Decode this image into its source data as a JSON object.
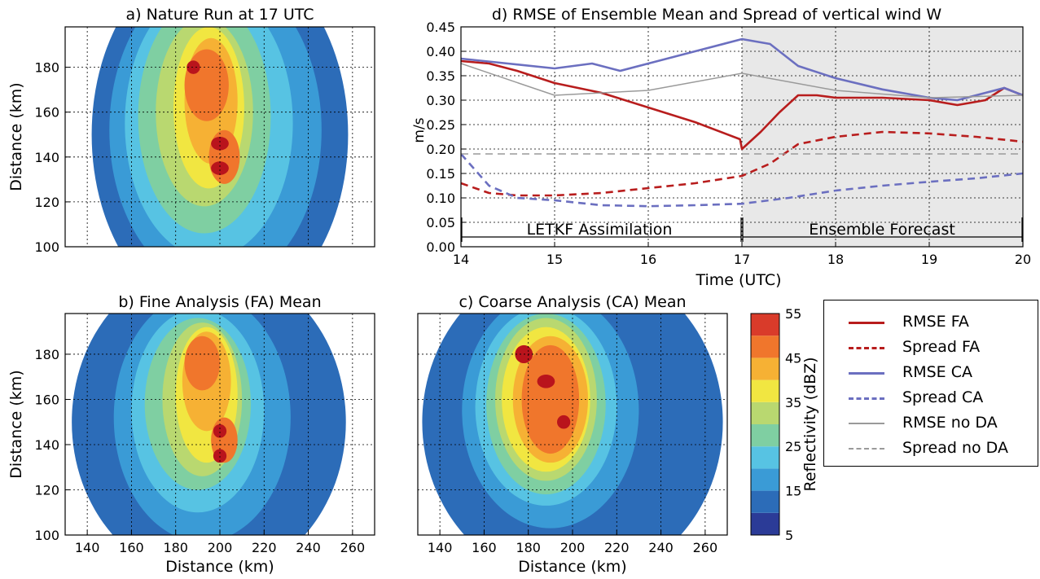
{
  "chart_data": [
    {
      "panel": "a",
      "type": "heatmap",
      "title": "a) Nature Run at 17 UTC",
      "ylabel": "Distance (km)",
      "xlabel": "",
      "xlim": [
        130,
        270
      ],
      "ylim": [
        100,
        198
      ],
      "yticks": [
        "100",
        "120",
        "140",
        "160",
        "180"
      ],
      "grid": true,
      "cells": [
        {
          "x": 200,
          "y": 150,
          "rx": 58,
          "ry": 82,
          "level": 10
        },
        {
          "x": 198,
          "y": 152,
          "rx": 48,
          "ry": 70,
          "level": 15
        },
        {
          "x": 195,
          "y": 155,
          "rx": 38,
          "ry": 60,
          "level": 20
        },
        {
          "x": 193,
          "y": 158,
          "rx": 30,
          "ry": 52,
          "level": 25
        },
        {
          "x": 193,
          "y": 160,
          "rx": 22,
          "ry": 42,
          "level": 30
        },
        {
          "x": 195,
          "y": 162,
          "rx": 16,
          "ry": 36,
          "level": 35
        },
        {
          "x": 196,
          "y": 165,
          "rx": 12,
          "ry": 28,
          "level": 40
        },
        {
          "x": 194,
          "y": 172,
          "rx": 10,
          "ry": 16,
          "level": 45
        },
        {
          "x": 202,
          "y": 140,
          "rx": 7,
          "ry": 12,
          "level": 45
        },
        {
          "x": 188,
          "y": 180,
          "rx": 3,
          "ry": 3,
          "level": 55
        },
        {
          "x": 200,
          "y": 146,
          "rx": 4,
          "ry": 3,
          "level": 55
        },
        {
          "x": 200,
          "y": 135,
          "rx": 4,
          "ry": 3,
          "level": 55
        }
      ]
    },
    {
      "panel": "b",
      "type": "heatmap",
      "title": "b) Fine Analysis (FA) Mean",
      "ylabel": "Distance (km)",
      "xlabel": "Distance (km)",
      "xlim": [
        130,
        270
      ],
      "ylim": [
        100,
        198
      ],
      "xticks": [
        "140",
        "160",
        "180",
        "200",
        "220",
        "240",
        "260"
      ],
      "yticks": [
        "100",
        "120",
        "140",
        "160",
        "180"
      ],
      "grid": true,
      "cells": [
        {
          "x": 195,
          "y": 150,
          "rx": 62,
          "ry": 70,
          "level": 10
        },
        {
          "x": 192,
          "y": 152,
          "rx": 40,
          "ry": 55,
          "level": 15
        },
        {
          "x": 190,
          "y": 155,
          "rx": 30,
          "ry": 45,
          "level": 20
        },
        {
          "x": 190,
          "y": 158,
          "rx": 24,
          "ry": 38,
          "level": 25
        },
        {
          "x": 192,
          "y": 160,
          "rx": 18,
          "ry": 34,
          "level": 30
        },
        {
          "x": 194,
          "y": 162,
          "rx": 14,
          "ry": 30,
          "level": 35
        },
        {
          "x": 194,
          "y": 168,
          "rx": 11,
          "ry": 22,
          "level": 40
        },
        {
          "x": 192,
          "y": 176,
          "rx": 8,
          "ry": 12,
          "level": 45
        },
        {
          "x": 202,
          "y": 142,
          "rx": 6,
          "ry": 10,
          "level": 45
        },
        {
          "x": 200,
          "y": 146,
          "rx": 3,
          "ry": 3,
          "level": 55
        },
        {
          "x": 200,
          "y": 135,
          "rx": 3,
          "ry": 3,
          "level": 55
        }
      ]
    },
    {
      "panel": "c",
      "type": "heatmap",
      "title": "c) Coarse Analysis (CA) Mean",
      "xlabel": "Distance (km)",
      "ylabel": "",
      "xlim": [
        130,
        270
      ],
      "ylim": [
        100,
        198
      ],
      "xticks": [
        "140",
        "160",
        "180",
        "200",
        "220",
        "240",
        "260"
      ],
      "grid": true,
      "cells": [
        {
          "x": 200,
          "y": 150,
          "rx": 68,
          "ry": 72,
          "level": 10
        },
        {
          "x": 190,
          "y": 155,
          "rx": 40,
          "ry": 52,
          "level": 15
        },
        {
          "x": 188,
          "y": 157,
          "rx": 32,
          "ry": 44,
          "level": 20
        },
        {
          "x": 188,
          "y": 158,
          "rx": 27,
          "ry": 40,
          "level": 25
        },
        {
          "x": 188,
          "y": 160,
          "rx": 23,
          "ry": 36,
          "level": 30
        },
        {
          "x": 188,
          "y": 160,
          "rx": 20,
          "ry": 32,
          "level": 35
        },
        {
          "x": 190,
          "y": 160,
          "rx": 17,
          "ry": 28,
          "level": 40
        },
        {
          "x": 190,
          "y": 160,
          "rx": 13,
          "ry": 24,
          "level": 45
        },
        {
          "x": 178,
          "y": 180,
          "rx": 4,
          "ry": 4,
          "level": 55
        },
        {
          "x": 188,
          "y": 168,
          "rx": 4,
          "ry": 3,
          "level": 55
        },
        {
          "x": 196,
          "y": 150,
          "rx": 3,
          "ry": 3,
          "level": 55
        }
      ]
    },
    {
      "panel": "d",
      "type": "line",
      "title": "d) RMSE of Ensemble Mean and Spread of vertical wind W",
      "xlabel": "Time (UTC)",
      "ylabel": "m/s",
      "xlim": [
        14,
        20
      ],
      "ylim": [
        0.0,
        0.45
      ],
      "xticks": [
        "14",
        "15",
        "16",
        "17",
        "18",
        "19",
        "20"
      ],
      "yticks": [
        "0.00",
        "0.05",
        "0.10",
        "0.15",
        "0.20",
        "0.25",
        "0.30",
        "0.35",
        "0.40",
        "0.45"
      ],
      "grid": true,
      "annotations": [
        "LETKF Assimilation",
        "Ensemble Forecast"
      ],
      "series": [
        {
          "name": "RMSE FA",
          "color": "#b81d1d",
          "dash": "solid",
          "x": [
            14.0,
            14.3,
            14.6,
            15.0,
            15.5,
            16.0,
            16.5,
            16.98,
            17.0,
            17.2,
            17.4,
            17.6,
            17.8,
            18.0,
            18.5,
            19.0,
            19.3,
            19.6,
            19.8,
            20.0
          ],
          "y": [
            0.38,
            0.375,
            0.36,
            0.335,
            0.315,
            0.285,
            0.255,
            0.22,
            0.2,
            0.235,
            0.275,
            0.31,
            0.31,
            0.305,
            0.305,
            0.3,
            0.29,
            0.3,
            0.325,
            0.31
          ]
        },
        {
          "name": "Spread FA",
          "color": "#b81d1d",
          "dash": "dashed",
          "x": [
            14.0,
            14.3,
            14.6,
            15.0,
            15.5,
            16.0,
            16.5,
            17.0,
            17.3,
            17.6,
            18.0,
            18.5,
            19.0,
            19.5,
            20.0
          ],
          "y": [
            0.13,
            0.11,
            0.105,
            0.105,
            0.11,
            0.12,
            0.13,
            0.145,
            0.17,
            0.21,
            0.225,
            0.235,
            0.232,
            0.225,
            0.215
          ]
        },
        {
          "name": "RMSE CA",
          "color": "#6b6fc0",
          "dash": "solid",
          "x": [
            14.0,
            14.5,
            15.0,
            15.4,
            15.7,
            16.0,
            16.5,
            17.0,
            17.3,
            17.6,
            18.0,
            18.5,
            19.0,
            19.3,
            19.6,
            19.8,
            20.0
          ],
          "y": [
            0.385,
            0.375,
            0.365,
            0.375,
            0.36,
            0.375,
            0.4,
            0.425,
            0.415,
            0.37,
            0.345,
            0.322,
            0.305,
            0.3,
            0.315,
            0.325,
            0.31
          ]
        },
        {
          "name": "Spread CA",
          "color": "#6b6fc0",
          "dash": "dashed",
          "x": [
            14.0,
            14.3,
            14.6,
            15.0,
            15.5,
            16.0,
            16.5,
            17.0,
            17.5,
            18.0,
            18.5,
            19.0,
            19.5,
            20.0
          ],
          "y": [
            0.19,
            0.125,
            0.1,
            0.095,
            0.085,
            0.083,
            0.085,
            0.088,
            0.1,
            0.115,
            0.125,
            0.133,
            0.14,
            0.15
          ]
        },
        {
          "name": "RMSE no DA",
          "color": "#9a9a9a",
          "dash": "solid",
          "x": [
            14.0,
            15.0,
            16.0,
            17.0,
            18.0,
            19.0,
            20.0
          ],
          "y": [
            0.375,
            0.31,
            0.32,
            0.355,
            0.32,
            0.305,
            0.31
          ]
        },
        {
          "name": "Spread no DA",
          "color": "#9a9a9a",
          "dash": "dashed",
          "x": [
            14.0,
            20.0
          ],
          "y": [
            0.19,
            0.19
          ]
        }
      ]
    }
  ],
  "colorbar": {
    "label": "Reflectivity (dBZ)",
    "ticks": [
      "5",
      "15",
      "25",
      "35",
      "45",
      "55"
    ],
    "levels": [
      5,
      10,
      15,
      20,
      25,
      30,
      35,
      40,
      45,
      50,
      55
    ],
    "colors": [
      "#2b3b97",
      "#2c6cb8",
      "#3a9bd6",
      "#57c3e3",
      "#7fcfa2",
      "#b9d870",
      "#f1e641",
      "#f6b134",
      "#f0762c",
      "#d93b2a",
      "#b9141c"
    ]
  },
  "legend": {
    "items": [
      {
        "label": "RMSE FA",
        "color": "#b81d1d",
        "dash": "solid"
      },
      {
        "label": "Spread FA",
        "color": "#b81d1d",
        "dash": "dashed"
      },
      {
        "label": "RMSE CA",
        "color": "#6b6fc0",
        "dash": "solid"
      },
      {
        "label": "Spread CA",
        "color": "#6b6fc0",
        "dash": "dashed"
      },
      {
        "label": "RMSE no DA",
        "color": "#9a9a9a",
        "dash": "solid"
      },
      {
        "label": "Spread no DA",
        "color": "#9a9a9a",
        "dash": "dashed"
      }
    ]
  }
}
